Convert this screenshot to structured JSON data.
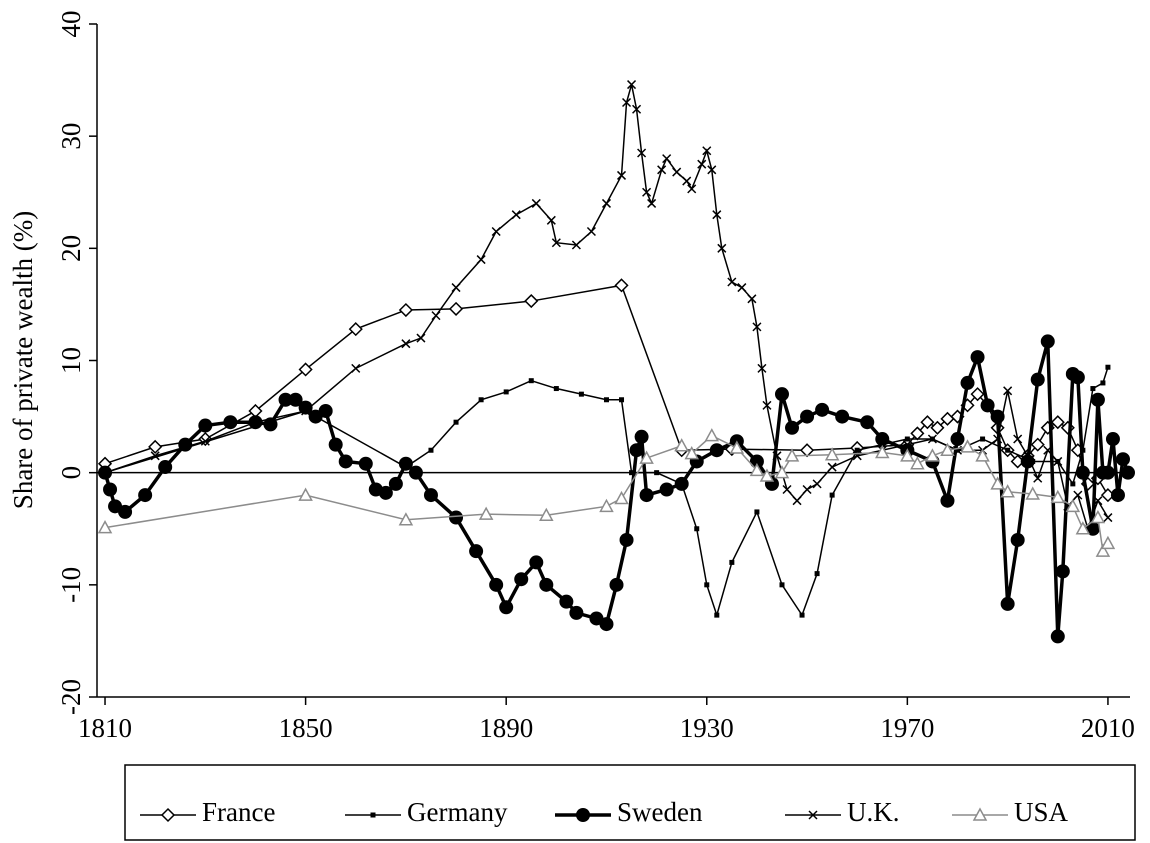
{
  "chart_data": {
    "type": "line",
    "ylabel": "Share of private wealth (%)",
    "xlim": [
      1808.4,
      2014.4
    ],
    "xticks": [
      1810,
      1850,
      1890,
      1930,
      1970,
      2010
    ],
    "ylim": [
      -20,
      40
    ],
    "yticks": [
      -20,
      -10,
      0,
      10,
      20,
      30,
      40
    ],
    "zero_line": true,
    "legend": "bottom",
    "series": [
      {
        "name": "France",
        "color": "#000000",
        "marker": "diamond",
        "x": [
          1810,
          1820,
          1830,
          1840,
          1850,
          1860,
          1870,
          1880,
          1895,
          1913,
          1925,
          1935,
          1950,
          1960,
          1970,
          1972,
          1974,
          1976,
          1978,
          1980,
          1982,
          1984,
          1986,
          1988,
          1990,
          1992,
          1994,
          1996,
          1998,
          2000,
          2002,
          2004,
          2006,
          2008,
          2010
        ],
        "values": [
          0.8,
          2.3,
          3.0,
          5.5,
          9.2,
          12.8,
          14.5,
          14.6,
          15.3,
          16.7,
          2.0,
          2.1,
          2.0,
          2.2,
          2.5,
          3.5,
          4.5,
          4.0,
          4.8,
          5.0,
          6.0,
          7.0,
          6.0,
          4.0,
          2.0,
          1.0,
          1.5,
          2.5,
          4.0,
          4.5,
          4.0,
          2.0,
          -1.0,
          -0.5,
          -2.0
        ]
      },
      {
        "name": "Germany",
        "color": "#000000",
        "marker": "square",
        "x": [
          1810,
          1850,
          1870,
          1875,
          1880,
          1885,
          1890,
          1895,
          1900,
          1905,
          1910,
          1913,
          1915,
          1920,
          1925,
          1928,
          1930,
          1932,
          1935,
          1940,
          1945,
          1949,
          1952,
          1955,
          1960,
          1965,
          1970,
          1975,
          1980,
          1985,
          1990,
          1995,
          2000,
          2003,
          2005,
          2007,
          2009,
          2010
        ],
        "values": [
          0,
          5.5,
          0.5,
          2,
          4.5,
          6.5,
          7.2,
          8.2,
          7.5,
          7,
          6.5,
          6.5,
          0,
          0,
          -1,
          -5,
          -10,
          -12.7,
          -8,
          -3.5,
          -10,
          -12.7,
          -9,
          -2,
          2,
          2.5,
          3,
          3,
          2,
          3,
          2,
          1,
          1,
          -1,
          2,
          7.5,
          8,
          9.4
        ]
      },
      {
        "name": "Sweden",
        "color": "#000000",
        "marker": "circle",
        "x": [
          1810,
          1811,
          1812,
          1814,
          1818,
          1822,
          1826,
          1830,
          1835,
          1840,
          1843,
          1846,
          1848,
          1850,
          1852,
          1854,
          1856,
          1858,
          1862,
          1864,
          1866,
          1868,
          1870,
          1872,
          1875,
          1880,
          1884,
          1888,
          1890,
          1893,
          1896,
          1898,
          1902,
          1904,
          1908,
          1910,
          1912,
          1914,
          1916,
          1917,
          1918,
          1922,
          1925,
          1928,
          1932,
          1936,
          1940,
          1943,
          1945,
          1947,
          1950,
          1953,
          1957,
          1962,
          1965,
          1970,
          1975,
          1978,
          1980,
          1982,
          1984,
          1986,
          1988,
          1990,
          1992,
          1994,
          1996,
          1998,
          2000,
          2001,
          2003,
          2004,
          2005,
          2007,
          2008,
          2009,
          2010,
          2011,
          2012,
          2013,
          2014
        ],
        "values": [
          0,
          -1.5,
          -3,
          -3.5,
          -2,
          0.5,
          2.5,
          4.2,
          4.5,
          4.5,
          4.3,
          6.5,
          6.5,
          5.8,
          5,
          5.5,
          2.5,
          1,
          0.8,
          -1.5,
          -1.8,
          -1,
          0.8,
          0,
          -2,
          -4,
          -7,
          -10,
          -12,
          -9.5,
          -8,
          -10,
          -11.5,
          -12.5,
          -13,
          -13.5,
          -10,
          -6,
          2,
          3.2,
          -2,
          -1.5,
          -1,
          1,
          2,
          2.8,
          1,
          -1,
          7,
          4,
          5,
          5.6,
          5,
          4.5,
          3,
          2,
          1,
          -2.5,
          3,
          8,
          10.3,
          6,
          5,
          -11.7,
          -6,
          1,
          8.3,
          11.7,
          -14.6,
          -8.8,
          8.8,
          8.5,
          0,
          -5,
          6.5,
          0,
          0,
          3,
          -2,
          1.2,
          0
        ]
      },
      {
        "name": "U.K.",
        "color": "#000000",
        "marker": "cross",
        "x": [
          1810,
          1820,
          1830,
          1840,
          1850,
          1860,
          1870,
          1873,
          1876,
          1880,
          1885,
          1888,
          1892,
          1896,
          1899,
          1900,
          1904,
          1907,
          1910,
          1913,
          1914,
          1915,
          1916,
          1917,
          1918,
          1919,
          1921,
          1922,
          1924,
          1926,
          1927,
          1929,
          1930,
          1931,
          1932,
          1933,
          1935,
          1937,
          1939,
          1940,
          1941,
          1942,
          1944,
          1946,
          1948,
          1950,
          1952,
          1955,
          1960,
          1965,
          1970,
          1975,
          1980,
          1985,
          1988,
          1990,
          1992,
          1994,
          1996,
          1998,
          2000,
          2002,
          2004,
          2006,
          2008,
          2010
        ],
        "values": [
          0,
          1.5,
          2.8,
          4.5,
          5.5,
          9.3,
          11.5,
          12,
          14,
          16.5,
          19,
          21.5,
          23,
          24,
          22.5,
          20.5,
          20.3,
          21.5,
          24,
          26.5,
          33,
          34.6,
          32.4,
          28.5,
          25,
          24,
          27,
          28,
          26.8,
          26,
          25.3,
          27.5,
          28.7,
          27,
          23,
          20,
          17,
          16.5,
          15.5,
          13,
          9.3,
          6,
          1.5,
          -1.5,
          -2.5,
          -1.5,
          -1,
          0.5,
          1.5,
          2,
          2.5,
          3,
          2,
          2,
          3,
          7.3,
          3,
          1.5,
          -0.5,
          2,
          1,
          -3,
          -2,
          -5,
          -2.5,
          -4
        ]
      },
      {
        "name": "USA",
        "color": "#8c8c8c",
        "marker": "triangle",
        "x": [
          1810,
          1850,
          1870,
          1886,
          1898,
          1910,
          1913,
          1918,
          1925,
          1927,
          1931,
          1936,
          1940,
          1942,
          1945,
          1947,
          1955,
          1965,
          1970,
          1972,
          1975,
          1978,
          1982,
          1985,
          1988,
          1990,
          1995,
          2000,
          2003,
          2005,
          2008,
          2009,
          2010
        ],
        "values": [
          -4.9,
          -2,
          -4.2,
          -3.7,
          -3.8,
          -3,
          -2.3,
          1.3,
          2.4,
          1.7,
          3.3,
          2.2,
          0.2,
          -0.3,
          0,
          1.5,
          1.6,
          1.8,
          1.5,
          0.8,
          1.5,
          2,
          2.3,
          1.5,
          -1,
          -1.7,
          -1.9,
          -2.2,
          -3,
          -5,
          -4,
          -7,
          -6.3
        ]
      }
    ]
  }
}
